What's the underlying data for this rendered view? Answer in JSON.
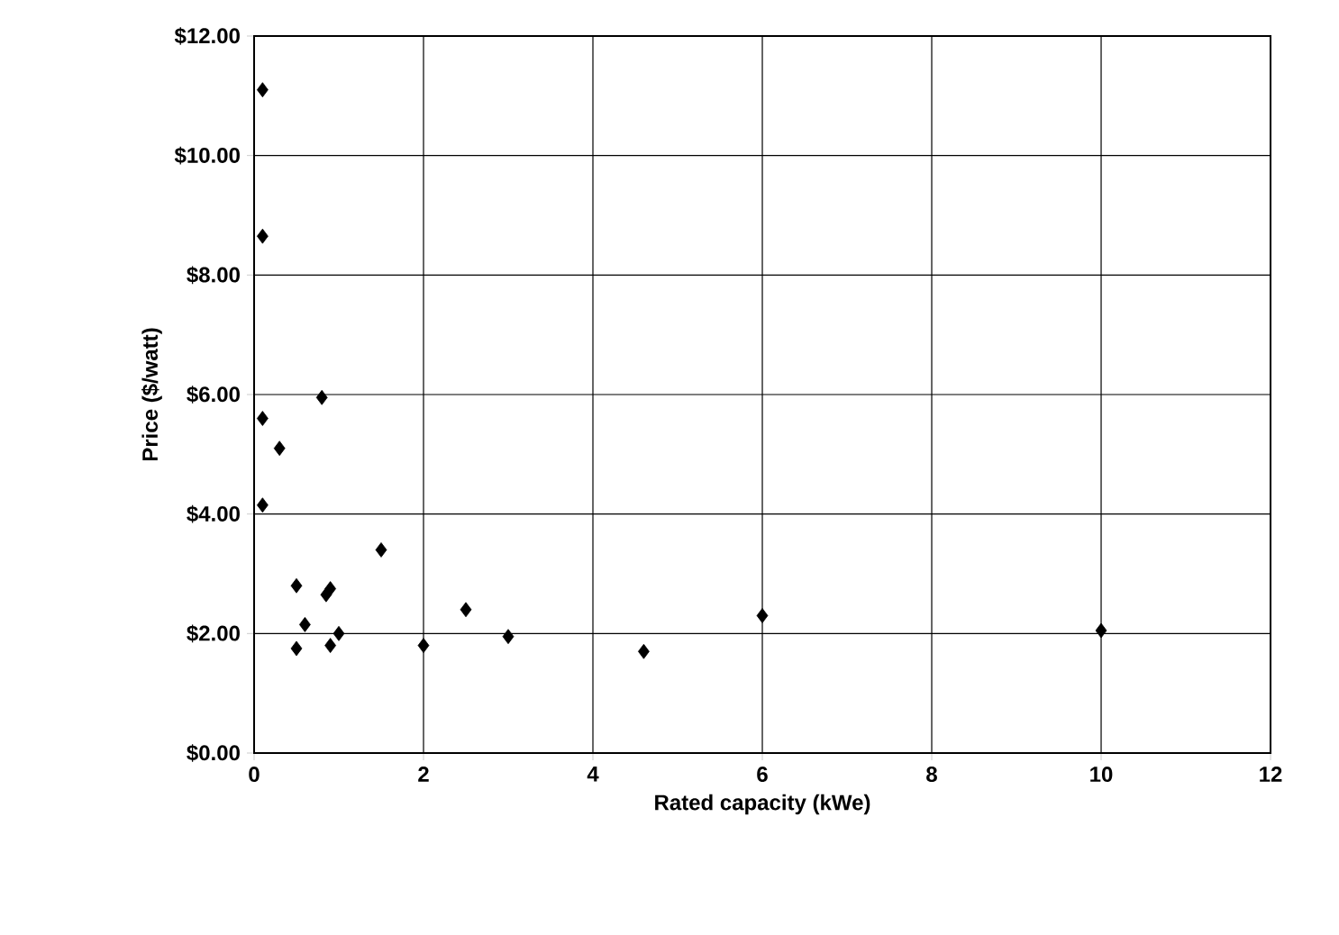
{
  "chart_data": {
    "type": "scatter",
    "xlabel": "Rated capacity (kWe)",
    "ylabel": "Price ($/watt)",
    "x": [
      0.1,
      0.1,
      0.1,
      0.1,
      0.3,
      0.8,
      0.5,
      0.5,
      0.6,
      0.85,
      0.9,
      0.9,
      1.0,
      1.5,
      2,
      2.5,
      3,
      4.6,
      6,
      10
    ],
    "values": [
      11.1,
      8.65,
      5.6,
      4.15,
      5.1,
      5.95,
      2.8,
      1.75,
      2.15,
      2.65,
      2.75,
      1.8,
      2.0,
      3.4,
      1.8,
      2.4,
      1.95,
      1.7,
      2.3,
      2.05
    ],
    "color": "#000000",
    "marker": "diamond",
    "grid": true,
    "xlim": [
      0,
      12
    ],
    "xticks": [
      0,
      2,
      4,
      6,
      8,
      10,
      12
    ],
    "ylim": [
      0,
      12
    ],
    "yticks": [
      {
        "value": 0,
        "label": "$0.00"
      },
      {
        "value": 2,
        "label": "$2.00"
      },
      {
        "value": 4,
        "label": "$4.00"
      },
      {
        "value": 6,
        "label": "$6.00"
      },
      {
        "value": 8,
        "label": "$8.00"
      },
      {
        "value": 10,
        "label": "$10.00"
      },
      {
        "value": 12,
        "label": "$12.00"
      }
    ]
  }
}
